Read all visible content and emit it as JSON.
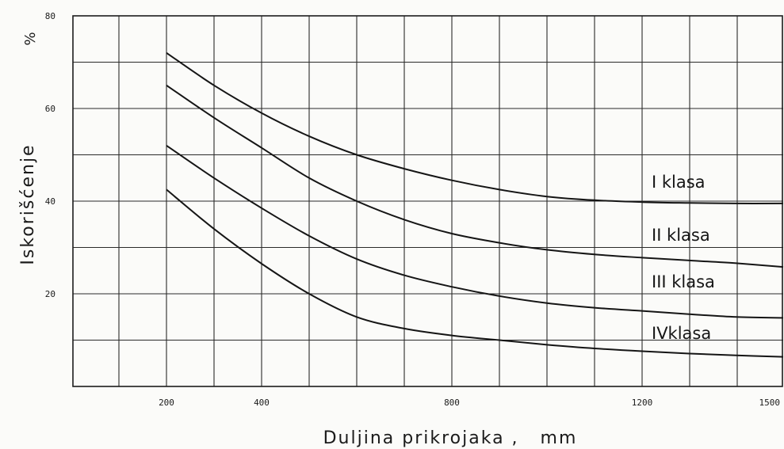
{
  "chart_data": {
    "type": "line",
    "ylabel": "Iskorišćenje",
    "yunit": "%",
    "xlabel": "Duljina prikrojaka ,   mm",
    "x_ticks": [
      {
        "value": 200,
        "label": "200"
      },
      {
        "value": 400,
        "label": "400"
      },
      {
        "value": 800,
        "label": "800"
      },
      {
        "value": 1200,
        "label": "1200"
      },
      {
        "value": 1500,
        "label": "1500"
      }
    ],
    "y_ticks": [
      {
        "value": 20,
        "label": "20"
      },
      {
        "value": 40,
        "label": "40"
      },
      {
        "value": 60,
        "label": "60"
      },
      {
        "value": 80,
        "label": "80"
      }
    ],
    "xlim": [
      0,
      1500
    ],
    "ylim": [
      0,
      80
    ],
    "grid": true,
    "series": [
      {
        "name": "I  klasa",
        "x": [
          200,
          300,
          400,
          500,
          600,
          700,
          800,
          900,
          1000,
          1100,
          1200,
          1300,
          1400,
          1500
        ],
        "y": [
          72,
          65,
          59,
          54,
          50,
          47,
          44.5,
          42.5,
          41,
          40.2,
          39.8,
          39.6,
          39.5,
          39.5
        ]
      },
      {
        "name": "II klasa",
        "x": [
          200,
          300,
          400,
          500,
          600,
          700,
          800,
          900,
          1000,
          1100,
          1200,
          1300,
          1400,
          1500
        ],
        "y": [
          65,
          58,
          51.5,
          45,
          40,
          36,
          33,
          31,
          29.5,
          28.5,
          27.8,
          27.2,
          26.6,
          25.8
        ]
      },
      {
        "name": "III klasa",
        "x": [
          200,
          300,
          400,
          500,
          600,
          700,
          800,
          900,
          1000,
          1100,
          1200,
          1300,
          1400,
          1500
        ],
        "y": [
          52,
          45,
          38.5,
          32.5,
          27.5,
          24,
          21.5,
          19.5,
          18,
          17,
          16.3,
          15.6,
          15,
          14.8
        ]
      },
      {
        "name": "IVklasa",
        "x": [
          200,
          300,
          400,
          500,
          600,
          700,
          800,
          900,
          1000,
          1100,
          1200,
          1300,
          1400,
          1500
        ],
        "y": [
          42.5,
          34,
          26.5,
          20,
          15,
          12.5,
          11,
          10,
          9,
          8.2,
          7.6,
          7.1,
          6.7,
          6.4
        ]
      }
    ]
  }
}
